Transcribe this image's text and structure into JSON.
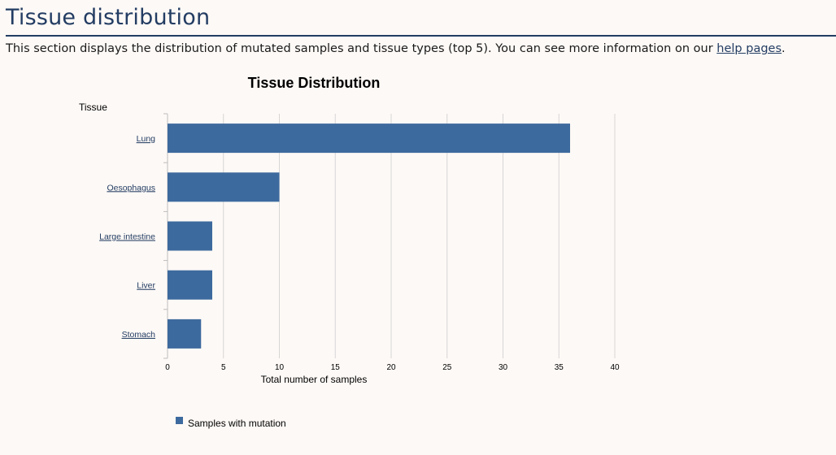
{
  "section": {
    "title": "Tissue distribution",
    "intro_prefix": "This section displays the distribution of mutated samples and tissue types (top 5). You can see more information on our ",
    "intro_link": "help pages",
    "intro_suffix": "."
  },
  "chart_data": {
    "type": "bar",
    "orientation": "horizontal",
    "title": "Tissue Distribution",
    "ylabel": "Tissue",
    "xlabel": "Total number of samples",
    "categories": [
      "Lung",
      "Oesophagus",
      "Large intestine",
      "Liver",
      "Stomach"
    ],
    "series": [
      {
        "name": "Samples with mutation",
        "values": [
          36,
          10,
          4,
          4,
          3
        ]
      }
    ],
    "xlim": [
      0,
      40
    ],
    "xticks": [
      0,
      5,
      10,
      15,
      20,
      25,
      30,
      35,
      40
    ],
    "grid": true,
    "legend": "bottom",
    "colors": {
      "bar": "#3d6a9e",
      "grid": "#d6d6d6",
      "link": "#233d63"
    }
  }
}
